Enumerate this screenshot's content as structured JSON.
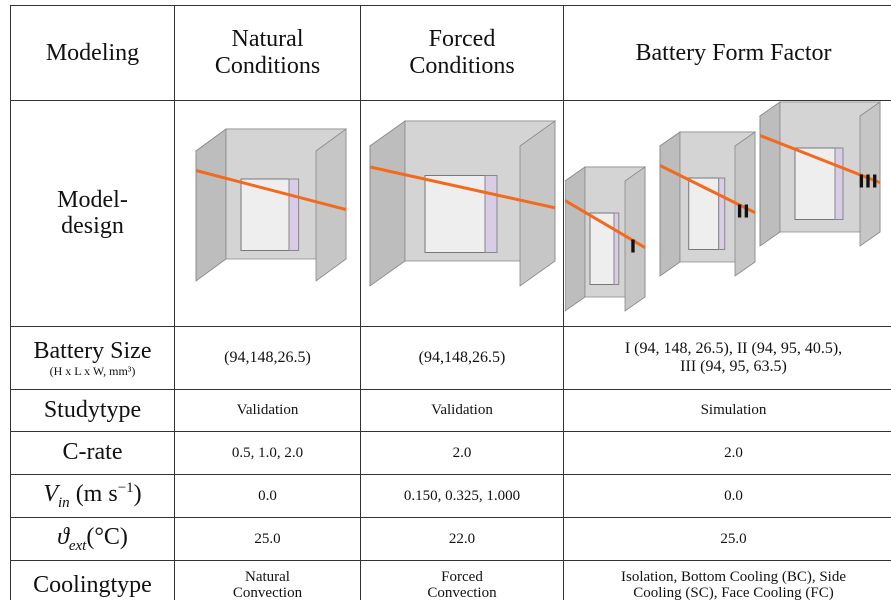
{
  "table": {
    "header": [
      "Modeling",
      [
        "Natural",
        "Conditions"
      ],
      [
        "Forced",
        "Conditions"
      ],
      "Battery Form Factor"
    ],
    "rows": [
      {
        "label": [
          "Model-",
          "design"
        ],
        "form_factor_labels": [
          "I",
          "II",
          "III"
        ]
      },
      {
        "label": "Battery Size",
        "sublabel": "(H x L x W, mm³)",
        "cells": [
          "(94,148,26.5)",
          "(94,148,26.5)",
          [
            "I (94, 148, 26.5), II (94, 95, 40.5),",
            "III (94, 95, 63.5)"
          ]
        ]
      },
      {
        "label": "Studytype",
        "cells": [
          "Validation",
          "Validation",
          "Simulation"
        ]
      },
      {
        "label": "C-rate",
        "cells": [
          "0.5, 1.0, 2.0",
          "2.0",
          "2.0"
        ]
      },
      {
        "label": {
          "symbol": "V",
          "subscript": "in",
          "unit": " (m s",
          "exponent": "−1",
          "unit_end": ")"
        },
        "cells": [
          "0.0",
          "0.150, 0.325, 1.000",
          "0.0"
        ]
      },
      {
        "label": {
          "symbol": "ϑ",
          "subscript": "ext",
          "unit": "(°C)"
        },
        "cells": [
          "25.0",
          "22.0",
          "25.0"
        ]
      },
      {
        "label": "Coolingtype",
        "cells": [
          [
            "Natural",
            "Convection"
          ],
          [
            "Forced",
            "Convection"
          ],
          [
            "Isolation, Bottom Cooling (BC), Side",
            "Cooling (SC), Face Cooling (FC)"
          ]
        ]
      }
    ]
  }
}
